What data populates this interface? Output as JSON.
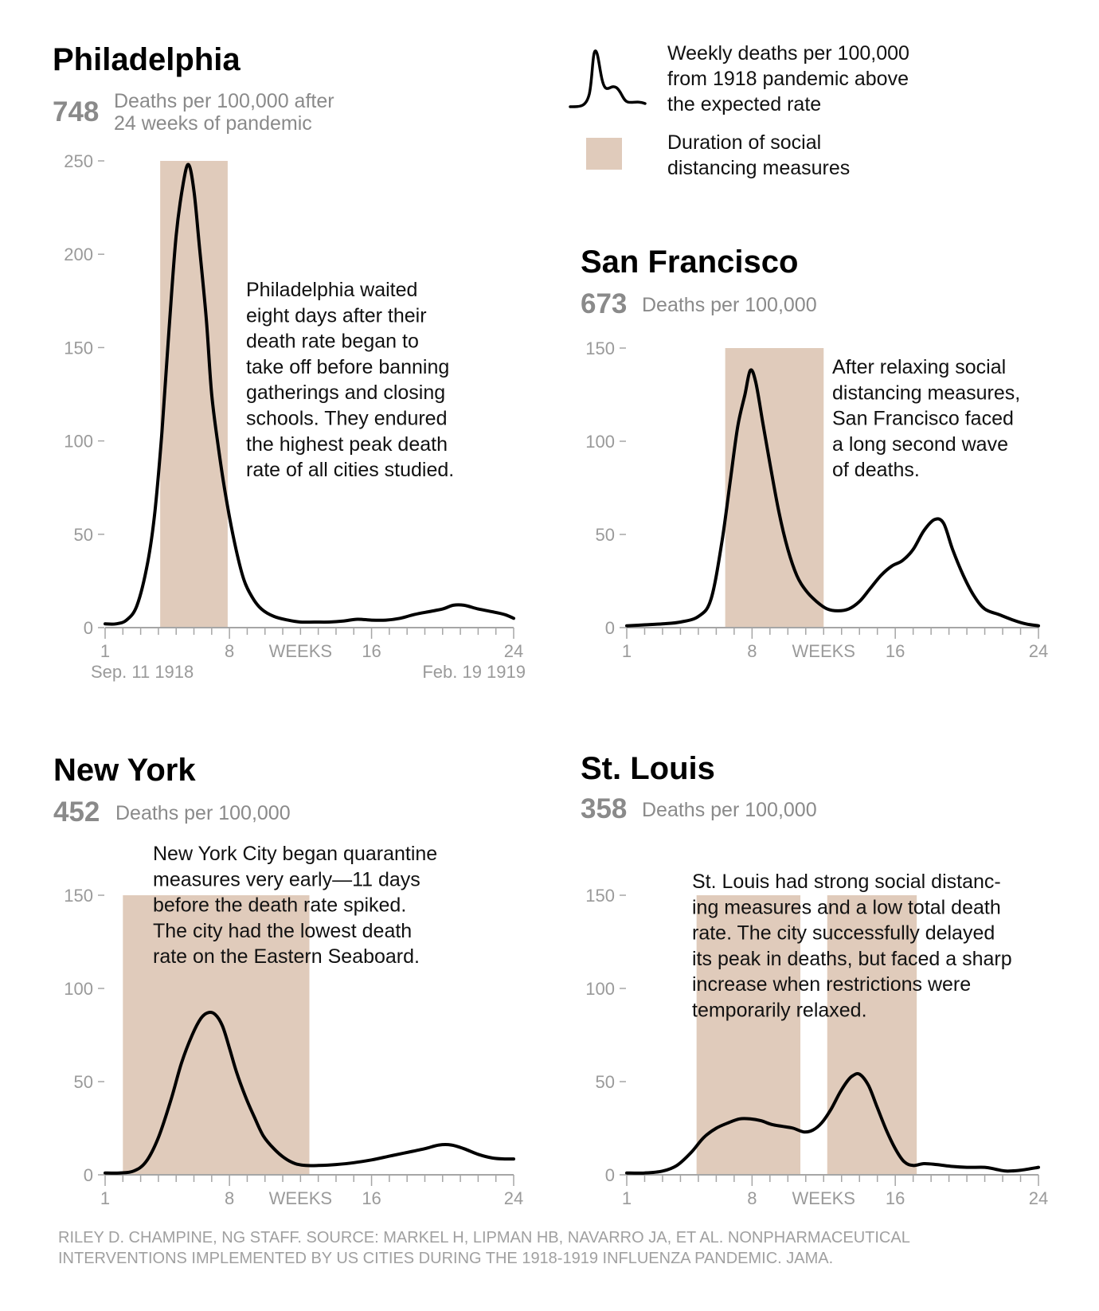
{
  "colors": {
    "line": "#000000",
    "band": "#e0cbbb",
    "axis": "#a6a6a6",
    "muted": "#8a8a8a"
  },
  "legend": {
    "line_label": [
      "Weekly deaths per 100,000",
      "from 1918 pandemic above",
      "the expected rate"
    ],
    "band_label": [
      "Duration of social",
      "distancing measures"
    ]
  },
  "credit": [
    "RILEY D. CHAMPINE, NG STAFF. SOURCE: MARKEL H, LIPMAN HB, NAVARRO JA, ET AL. NONPHARMACEUTICAL",
    "INTERVENTIONS IMPLEMENTED BY US CITIES DURING THE 1918-1919 INFLUENZA PANDEMIC. JAMA."
  ],
  "chart_data": [
    {
      "type": "line",
      "city": "Philadelphia",
      "total": "748",
      "subtitle": [
        "Deaths per 100,000 after",
        "24 weeks of pandemic"
      ],
      "annotation": [
        "Philadelphia waited",
        "eight days after their",
        "death rate began to",
        "take off before banning",
        "gatherings and closing",
        "schools. They endured",
        "the highest peak death",
        "rate of all cities studied."
      ],
      "xlabel": "WEEKS",
      "x_ticks": [
        "1",
        "8",
        "16",
        "24"
      ],
      "date_labels": [
        "Sep. 11 1918",
        "Feb. 19 1919"
      ],
      "y_ticks": [
        0,
        50,
        100,
        150,
        200,
        250
      ],
      "ylim": [
        0,
        250
      ],
      "xlim": [
        1,
        24
      ],
      "distancing": [
        [
          4.1,
          7.9
        ]
      ],
      "x": [
        1,
        1.6,
        2.2,
        2.8,
        3.4,
        3.8,
        4.2,
        4.6,
        5.0,
        5.4,
        5.7,
        6.0,
        6.3,
        6.7,
        7.0,
        7.4,
        7.8,
        8.3,
        8.8,
        9.3,
        9.8,
        10.5,
        11.3,
        12,
        12.8,
        13.6,
        14.4,
        15.2,
        16,
        16.8,
        17.6,
        18.4,
        19.2,
        20,
        20.6,
        21.2,
        22,
        22.8,
        23.5,
        24
      ],
      "y": [
        2,
        2,
        4,
        12,
        35,
        62,
        105,
        160,
        210,
        238,
        248,
        234,
        205,
        165,
        125,
        95,
        70,
        45,
        26,
        16,
        10,
        6,
        4,
        3,
        3,
        3,
        3.5,
        4.5,
        4,
        4,
        5,
        7,
        8.5,
        10,
        12,
        12,
        10,
        8.5,
        7,
        5
      ]
    },
    {
      "type": "line",
      "city": "San Francisco",
      "total": "673",
      "subtitle": [
        "Deaths per 100,000"
      ],
      "annotation": [
        "After relaxing social",
        "distancing measures,",
        "San Francisco faced",
        "a long second wave",
        "of deaths."
      ],
      "xlabel": "WEEKS",
      "x_ticks": [
        "1",
        "8",
        "16",
        "24"
      ],
      "y_ticks": [
        0,
        50,
        100,
        150
      ],
      "ylim": [
        0,
        150
      ],
      "xlim": [
        1,
        24
      ],
      "distancing": [
        [
          6.5,
          12.0
        ]
      ],
      "x": [
        1,
        2,
        3,
        4,
        5,
        5.7,
        6.3,
        6.8,
        7.2,
        7.6,
        7.9,
        8.2,
        8.6,
        9.0,
        9.5,
        10,
        10.5,
        11,
        11.6,
        12.2,
        12.8,
        13.4,
        14,
        14.6,
        15.2,
        15.8,
        16.4,
        17,
        17.6,
        18.2,
        18.7,
        19.2,
        19.8,
        20.4,
        21,
        21.8,
        22.6,
        23.3,
        24
      ],
      "y": [
        1,
        1.5,
        2,
        3,
        6,
        15,
        45,
        80,
        108,
        125,
        138,
        132,
        110,
        88,
        62,
        42,
        28,
        20,
        14,
        10,
        9,
        10,
        14,
        21,
        28,
        33,
        36,
        42,
        52,
        58,
        56,
        42,
        28,
        17,
        10,
        7,
        4,
        2,
        1
      ]
    },
    {
      "type": "line",
      "city": "New York",
      "total": "452",
      "subtitle": [
        "Deaths per 100,000"
      ],
      "annotation": [
        "New York City began quarantine",
        "measures very early—11 days",
        "before the death rate spiked.",
        "The city had the lowest death",
        "rate on the Eastern Seaboard."
      ],
      "xlabel": "WEEKS",
      "x_ticks": [
        "1",
        "8",
        "16",
        "24"
      ],
      "y_ticks": [
        0,
        50,
        100,
        150
      ],
      "ylim": [
        0,
        150
      ],
      "xlim": [
        1,
        24
      ],
      "distancing": [
        [
          2.0,
          12.5
        ]
      ],
      "x": [
        1,
        1.8,
        2.6,
        3.3,
        4.0,
        4.7,
        5.3,
        5.9,
        6.4,
        6.8,
        7.2,
        7.6,
        8.0,
        8.4,
        8.9,
        9.4,
        9.9,
        10.5,
        11.1,
        11.7,
        12.3,
        13,
        14,
        15,
        16,
        17,
        18,
        19,
        19.8,
        20.5,
        21.2,
        22,
        22.8,
        23.5,
        24
      ],
      "y": [
        1,
        1,
        2,
        7,
        20,
        40,
        60,
        75,
        84,
        87,
        86,
        80,
        68,
        55,
        42,
        31,
        21,
        14,
        9,
        6,
        5,
        5,
        5.5,
        6.5,
        8,
        10,
        12,
        14,
        16,
        16,
        14,
        11,
        9,
        8.5,
        8.5
      ]
    },
    {
      "type": "line",
      "city": "St. Louis",
      "total": "358",
      "subtitle": [
        "Deaths per 100,000"
      ],
      "annotation": [
        "St. Louis had strong social distanc-",
        "ing measures and a low total death",
        "rate. The city successfully delayed",
        "its peak in deaths, but faced a sharp",
        "increase when restrictions were",
        "temporarily relaxed."
      ],
      "xlabel": "WEEKS",
      "x_ticks": [
        "1",
        "8",
        "16",
        "24"
      ],
      "y_ticks": [
        0,
        50,
        100,
        150
      ],
      "ylim": [
        0,
        150
      ],
      "xlim": [
        1,
        24
      ],
      "distancing": [
        [
          4.9,
          10.7
        ],
        [
          12.2,
          17.2
        ]
      ],
      "x": [
        1,
        2,
        3,
        3.8,
        4.6,
        5.3,
        6.0,
        6.7,
        7.3,
        7.9,
        8.5,
        9.1,
        9.7,
        10.3,
        10.9,
        11.4,
        11.9,
        12.4,
        12.9,
        13.3,
        13.6,
        14.0,
        14.5,
        15.0,
        15.5,
        16.0,
        16.5,
        17.0,
        17.6,
        18.3,
        19.2,
        20.0,
        21.0,
        21.6,
        22.2,
        23,
        24
      ],
      "y": [
        1,
        1,
        2,
        5,
        12,
        20,
        25,
        28,
        30,
        30,
        29,
        27,
        26,
        25,
        23,
        24,
        28,
        35,
        44,
        50,
        53,
        54,
        48,
        36,
        24,
        14,
        7,
        5,
        6,
        5.5,
        4.5,
        4,
        4,
        3,
        2,
        2.5,
        4
      ]
    }
  ]
}
